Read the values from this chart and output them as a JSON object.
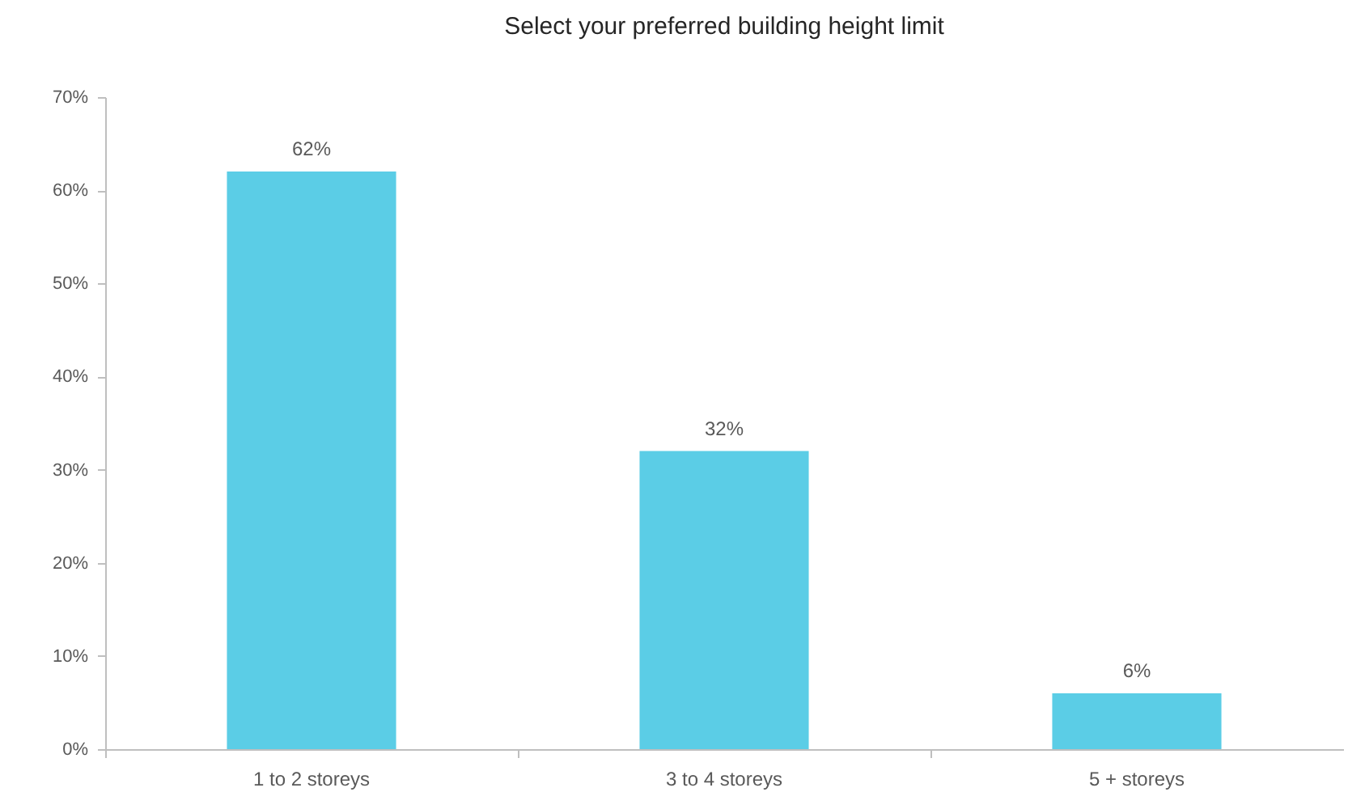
{
  "chart_data": {
    "type": "bar",
    "title": "Select your preferred building height limit",
    "categories": [
      "1 to 2 storeys",
      "3 to 4 storeys",
      "5 + storeys"
    ],
    "values": [
      62,
      32,
      6
    ],
    "value_labels": [
      "62%",
      "32%",
      "6%"
    ],
    "color": "#5bcde6",
    "ylim": [
      0,
      70
    ],
    "yticks": [
      {
        "value": 0,
        "label": "0%"
      },
      {
        "value": 10,
        "label": "10%"
      },
      {
        "value": 20,
        "label": "20%"
      },
      {
        "value": 30,
        "label": "30%"
      },
      {
        "value": 40,
        "label": "40%"
      },
      {
        "value": 50,
        "label": "50%"
      },
      {
        "value": 60,
        "label": "60%"
      },
      {
        "value": 70,
        "label": "70%"
      }
    ]
  }
}
